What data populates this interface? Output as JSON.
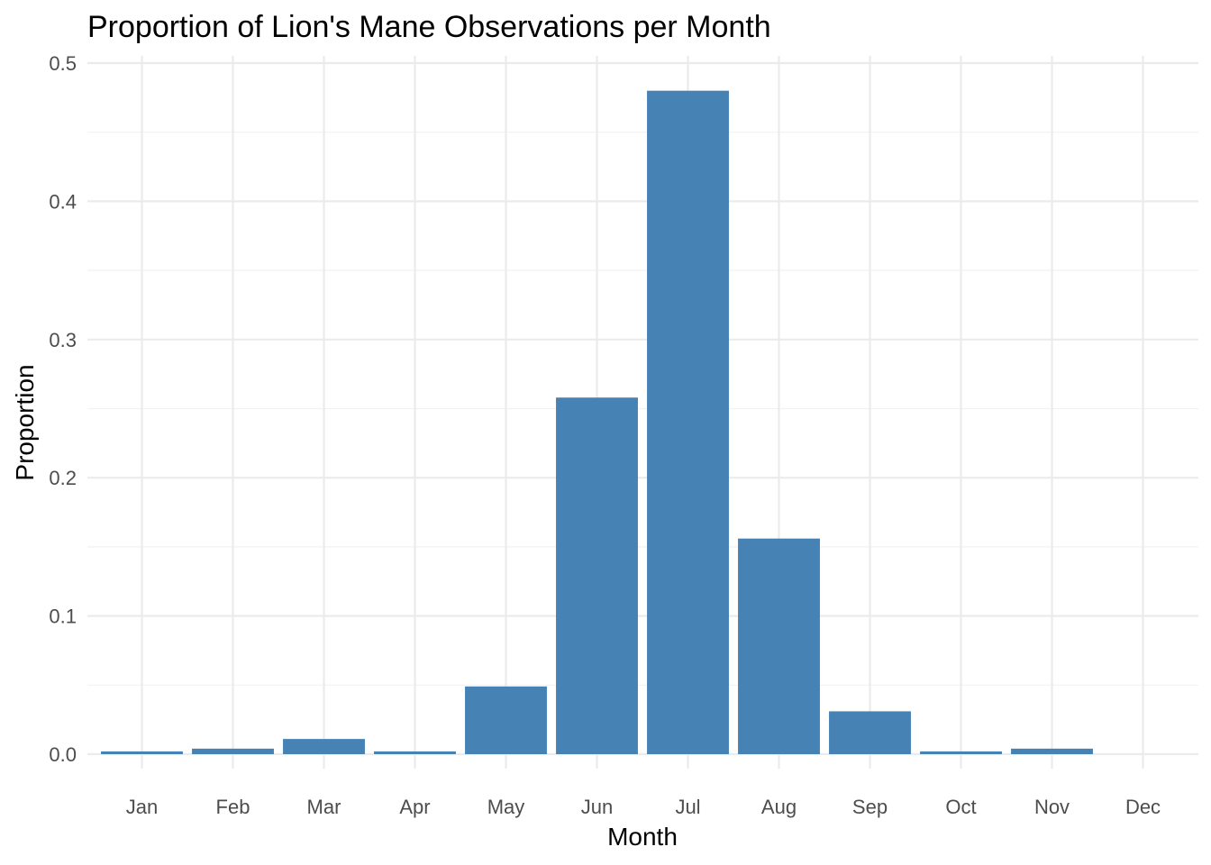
{
  "chart_data": {
    "type": "bar",
    "title": "Proportion of Lion's Mane Observations per Month",
    "xlabel": "Month",
    "ylabel": "Proportion",
    "categories": [
      "Jan",
      "Feb",
      "Mar",
      "Apr",
      "May",
      "Jun",
      "Jul",
      "Aug",
      "Sep",
      "Oct",
      "Nov",
      "Dec"
    ],
    "values": [
      0.002,
      0.004,
      0.011,
      0.002,
      0.049,
      0.258,
      0.48,
      0.156,
      0.031,
      0.002,
      0.004,
      0.0
    ],
    "ylim": [
      0,
      0.5
    ],
    "yticks": [
      0,
      0.1,
      0.2,
      0.3,
      0.4,
      0.5
    ],
    "ytick_labels": [
      "0.0",
      "0.1",
      "0.2",
      "0.3",
      "0.4",
      "0.5"
    ],
    "grid": true,
    "bar_color": "#4682B4"
  }
}
